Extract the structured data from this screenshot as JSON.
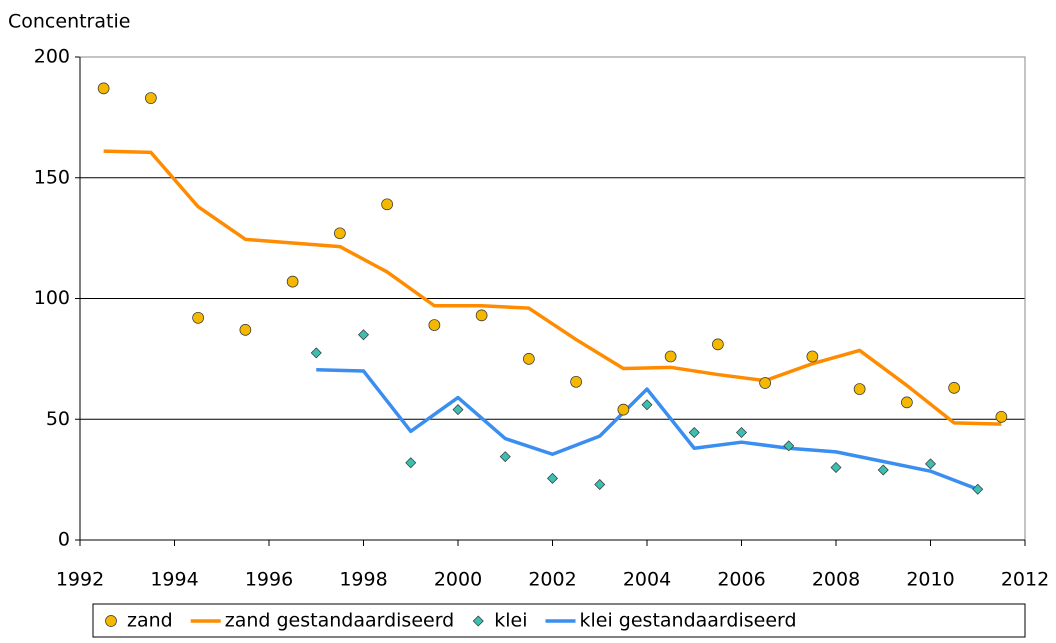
{
  "chart_data": {
    "type": "combo",
    "y_label": "Concentratie",
    "xlim": [
      1992,
      2012
    ],
    "xticks": [
      1992,
      1994,
      1996,
      1998,
      2000,
      2002,
      2004,
      2006,
      2008,
      2010,
      2012
    ],
    "ylim": [
      0,
      200
    ],
    "yticks": [
      0,
      50,
      100,
      150,
      200
    ],
    "grid": true,
    "legend": "bottom",
    "series": [
      {
        "name": "zand",
        "type": "scatter",
        "marker": "circle",
        "color": "#f5b800",
        "x": [
          1992.5,
          1993.5,
          1994.5,
          1995.5,
          1996.5,
          1997.5,
          1998.5,
          1999.5,
          2000.5,
          2001.5,
          2002.5,
          2003.5,
          2004.5,
          2005.5,
          2006.5,
          2007.5,
          2008.5,
          2009.5,
          2010.5,
          2011.5
        ],
        "values": [
          187,
          183,
          92,
          87,
          107,
          127,
          139,
          89,
          93,
          75,
          65.5,
          54,
          76,
          81,
          65,
          76,
          62.5,
          57,
          63,
          51
        ]
      },
      {
        "name": "zand gestandaardiseerd",
        "type": "line",
        "color": "#ff8c00",
        "x": [
          1992.5,
          1993.5,
          1994.5,
          1995.5,
          1996.5,
          1997.5,
          1998.5,
          1999.5,
          2000.5,
          2001.5,
          2002.5,
          2003.5,
          2004.5,
          2005.5,
          2006.5,
          2007.5,
          2008.5,
          2009.5,
          2010.5,
          2011.5
        ],
        "values": [
          161,
          160.5,
          138,
          124.5,
          123,
          121.5,
          111,
          97,
          97,
          96,
          83,
          71,
          71.5,
          68.5,
          66,
          73,
          78.5,
          64,
          48.5,
          48
        ]
      },
      {
        "name": "klei",
        "type": "scatter",
        "marker": "diamond",
        "color": "#3cbfb0",
        "x": [
          1997,
          1998,
          1999,
          2000,
          2001,
          2002,
          2003,
          2004,
          2005,
          2006,
          2007,
          2008,
          2009,
          2010,
          2011
        ],
        "values": [
          77.5,
          85,
          32,
          54,
          34.5,
          25.5,
          23,
          56,
          44.5,
          44.5,
          39,
          30,
          29,
          31.5,
          21
        ]
      },
      {
        "name": "klei gestandaardiseerd",
        "type": "line",
        "color": "#3a8ef0",
        "x": [
          1997,
          1998,
          1999,
          2000,
          2001,
          2002,
          2003,
          2004,
          2005,
          2006,
          2007,
          2008,
          2009,
          2010,
          2011
        ],
        "values": [
          70.5,
          70,
          45,
          59,
          42,
          35.5,
          43,
          62.5,
          38,
          40.5,
          38,
          36.5,
          32.5,
          28.5,
          21
        ]
      }
    ]
  }
}
